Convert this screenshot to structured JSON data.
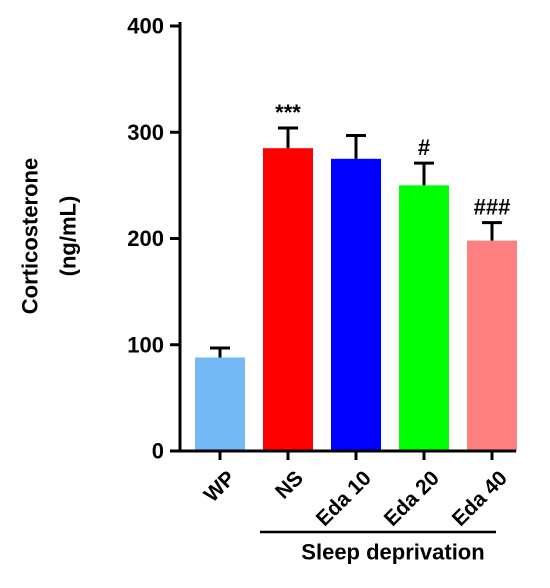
{
  "chart_data": {
    "type": "bar",
    "title": "",
    "xlabel": "",
    "ylabel_line1": "Corticosterone",
    "ylabel_line2": "(ng/mL)",
    "ylim": [
      0,
      400
    ],
    "yticks": [
      "0",
      "100",
      "200",
      "300",
      "400"
    ],
    "categories": [
      "WP",
      "NS",
      "Eda 10",
      "Eda 20",
      "Eda 40"
    ],
    "values": [
      88,
      285,
      275,
      250,
      198
    ],
    "errors": [
      9,
      19,
      22,
      21,
      17
    ],
    "annotations": [
      "",
      "***",
      "",
      "#",
      "###"
    ],
    "colors": [
      "#74b8f5",
      "#ff0000",
      "#0000ff",
      "#00ff00",
      "#ff8080"
    ],
    "group_label": "Sleep deprivation",
    "grid": false,
    "legend": "none"
  }
}
